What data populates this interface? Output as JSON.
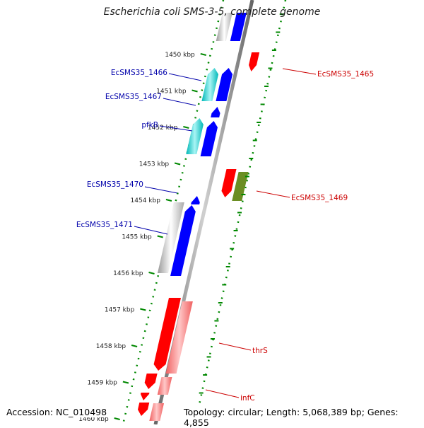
{
  "title": "Escherichia coli SMS-3-5, complete genome",
  "footer": {
    "accession": "Accession: NC_010498",
    "summary": "Topology: circular; Length: 5,068,389 bp; Genes: 4,855"
  },
  "ticks": [
    "1450 kbp",
    "1451 kbp",
    "1452 kbp",
    "1453 kbp",
    "1454 kbp",
    "1455 kbp",
    "1456 kbp",
    "1457 kbp",
    "1458 kbp",
    "1459 kbp",
    "1460 kbp"
  ],
  "left_labels": [
    "EcSMS35_1466",
    "EcSMS35_1467",
    "pfkB",
    "EcSMS35_1470",
    "EcSMS35_1471"
  ],
  "right_labels": [
    "EcSMS35_1465",
    "EcSMS35_1469",
    "thrS",
    "infC"
  ],
  "colors": {
    "forward_cds": "#0000ff",
    "reverse_cds": "#ff0000",
    "forward_gene": "#00cccc",
    "reverse_gene": "#ff8080",
    "other_gene": "#6b8e23",
    "gray_gene": "#bbbbbb",
    "backbone": "#888888",
    "dots": "#008800",
    "left_label": "#0000aa",
    "right_label": "#cc0000"
  }
}
